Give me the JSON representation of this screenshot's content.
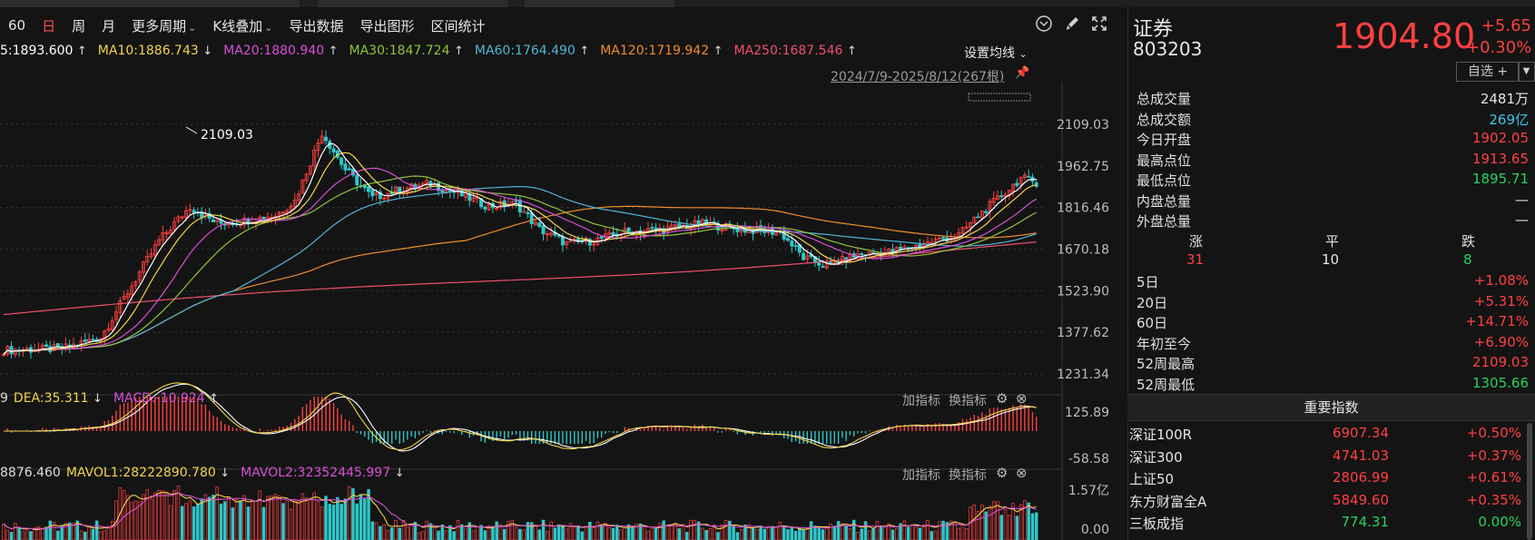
{
  "toolbar": {
    "items": [
      {
        "label": "60",
        "active": false
      },
      {
        "label": "日",
        "active": true
      },
      {
        "label": "周",
        "active": false
      },
      {
        "label": "月",
        "active": false
      },
      {
        "label": "更多周期",
        "active": false,
        "dropdown": true
      },
      {
        "label": "K线叠加",
        "active": false,
        "dropdown": true
      },
      {
        "label": "导出数据",
        "active": false
      },
      {
        "label": "导出图形",
        "active": false
      },
      {
        "label": "区间统计",
        "active": false
      }
    ],
    "icons": [
      "chevron-circle-down-icon",
      "brush-icon",
      "fullscreen-icon"
    ]
  },
  "ma_line": [
    {
      "text": "5:1893.600",
      "arrow": "↑",
      "color": "#ffffff"
    },
    {
      "text": "MA10:1886.743",
      "arrow": "↓",
      "color": "#f3d34a"
    },
    {
      "text": "MA20:1880.940",
      "arrow": "↑",
      "color": "#d84fd8"
    },
    {
      "text": "MA30:1847.724",
      "arrow": "↑",
      "color": "#8fc43a"
    },
    {
      "text": "MA60:1764.490",
      "arrow": "↑",
      "color": "#4fb6d6"
    },
    {
      "text": "MA120:1719.942",
      "arrow": "↑",
      "color": "#f08c2a"
    },
    {
      "text": "MA250:1687.546",
      "arrow": "↑",
      "color": "#f0506e"
    }
  ],
  "set_ma_label": "设置均线",
  "date_range": "2024/7/9-2025/8/12(267根)",
  "price_axis": [
    "2109.03",
    "1962.75",
    "1816.46",
    "1670.18",
    "1523.90",
    "1377.62",
    "1231.34"
  ],
  "high_marker": "2109.03",
  "macd": {
    "partial": "9",
    "items": [
      {
        "text": "DEA:35.311",
        "arrow": "↓",
        "color": "#f3d34a"
      },
      {
        "text": "MACD:-10.924",
        "arrow": "↑",
        "color": "#d84fd8"
      }
    ],
    "axis_top": "125.89",
    "axis_bottom": "-58.58"
  },
  "vol": {
    "partial": "8876.460",
    "items": [
      {
        "text": "MAVOL1:28222890.780",
        "arrow": "↓",
        "color": "#f3d34a"
      },
      {
        "text": "MAVOL2:32352445.997",
        "arrow": "↓",
        "color": "#d84fd8"
      }
    ],
    "axis_top": "1.57亿",
    "axis_bottom": "0.00"
  },
  "panel_actions": {
    "add": "加指标",
    "switch": "换指标"
  },
  "stock": {
    "name": "证券",
    "code": "803203",
    "price": "1904.80",
    "change": "+5.65",
    "change_pct": "+0.30%",
    "watch_label": "自选 +"
  },
  "stats": [
    {
      "k": "总成交量",
      "v": "2481万",
      "color": "white"
    },
    {
      "k": "总成交额",
      "v": "269亿",
      "color": "cyan"
    },
    {
      "k": "今日开盘",
      "v": "1902.05",
      "color": "red"
    },
    {
      "k": "最高点位",
      "v": "1913.65",
      "color": "red"
    },
    {
      "k": "最低点位",
      "v": "1895.71",
      "color": "green"
    },
    {
      "k": "内盘总量",
      "v": "—",
      "color": "white"
    },
    {
      "k": "外盘总量",
      "v": "—",
      "color": "white"
    }
  ],
  "breadth": {
    "up_label": "涨",
    "flat_label": "平",
    "down_label": "跌",
    "up": "31",
    "flat": "10",
    "down": "8"
  },
  "returns": [
    {
      "k": "5日",
      "v": "+1.08%",
      "color": "red"
    },
    {
      "k": "20日",
      "v": "+5.31%",
      "color": "red"
    },
    {
      "k": "60日",
      "v": "+14.71%",
      "color": "red"
    },
    {
      "k": "年初至今",
      "v": "+6.90%",
      "color": "red"
    },
    {
      "k": "52周最高",
      "v": "2109.03",
      "color": "red"
    },
    {
      "k": "52周最低",
      "v": "1305.66",
      "color": "green"
    }
  ],
  "index_header": "重要指数",
  "indices": [
    {
      "name": "深证100R",
      "price": "6907.34",
      "chg": "+0.50%",
      "color": "red"
    },
    {
      "name": "深证300",
      "price": "4741.03",
      "chg": "+0.37%",
      "color": "red"
    },
    {
      "name": "上证50",
      "price": "2806.99",
      "chg": "+0.61%",
      "color": "red"
    },
    {
      "name": "东方财富全A",
      "price": "5849.60",
      "chg": "+0.35%",
      "color": "red"
    },
    {
      "name": "三板成指",
      "price": "774.31",
      "chg": "0.00%",
      "color": "green"
    }
  ],
  "colors": {
    "up": "#ff4040",
    "down": "#2ec7c9",
    "ma5": "#ffffff",
    "ma10": "#f3d34a",
    "ma20": "#d84fd8",
    "ma30": "#8fc43a",
    "ma60": "#4fb6d6",
    "ma120": "#f08c2a",
    "ma250": "#f0506e"
  }
}
